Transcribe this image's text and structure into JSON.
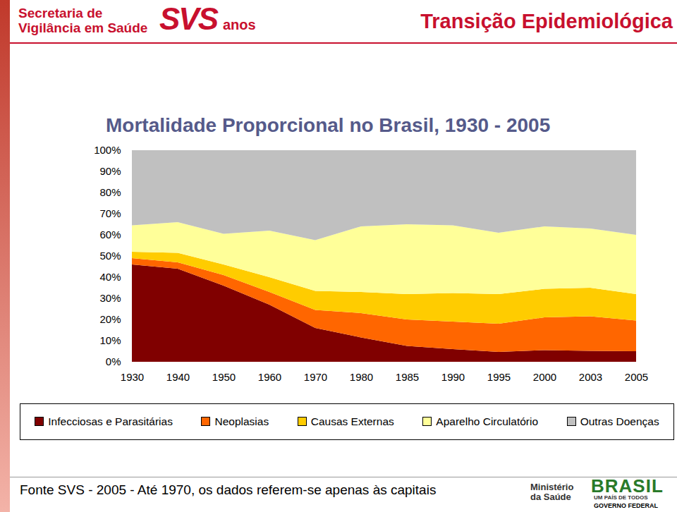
{
  "header": {
    "organization": "Secretaria de Vigilância em Saúde",
    "logo": "SVS",
    "logo_suffix": "anos",
    "title": "Transição Epidemiológica"
  },
  "chart_data": {
    "type": "area",
    "stacked": true,
    "legend": "bottom",
    "title": "Mortalidade Proporcional no Brasil, 1930 - 2005",
    "categories": [
      "1930",
      "1940",
      "1950",
      "1960",
      "1970",
      "1980",
      "1985",
      "1990",
      "1995",
      "2000",
      "2003",
      "2005"
    ],
    "ylim": [
      0,
      100
    ],
    "yticks": [
      {
        "value": 0,
        "label": "0%"
      },
      {
        "value": 10,
        "label": "10%"
      },
      {
        "value": 20,
        "label": "20%"
      },
      {
        "value": 30,
        "label": "30%"
      },
      {
        "value": 40,
        "label": "40%"
      },
      {
        "value": 50,
        "label": "50%"
      },
      {
        "value": 60,
        "label": "60%"
      },
      {
        "value": 70,
        "label": "70%"
      },
      {
        "value": 80,
        "label": "80%"
      },
      {
        "value": 90,
        "label": "90%"
      },
      {
        "value": 100,
        "label": "100%"
      }
    ],
    "series": [
      {
        "name": "Infecciosas e Parasitárias",
        "color": "#800000",
        "values": [
          46,
          44,
          36,
          27,
          16,
          11.5,
          7.5,
          6,
          4.7,
          5.5,
          5.2,
          5
        ]
      },
      {
        "name": "Neoplasias",
        "color": "#ff6600",
        "values": [
          3,
          3,
          5,
          6,
          8.5,
          11.5,
          12.5,
          13,
          13.3,
          15.5,
          16.3,
          14.5
        ]
      },
      {
        "name": "Causas Externas",
        "color": "#ffcc00",
        "values": [
          3,
          4.5,
          5,
          7,
          9,
          10,
          12,
          13.5,
          14,
          13.5,
          13.5,
          12.5
        ]
      },
      {
        "name": "Aparelho Circulatório",
        "color": "#ffff99",
        "values": [
          12.5,
          14.5,
          14.5,
          22,
          24,
          31,
          33,
          32,
          29,
          29.5,
          28,
          28
        ]
      },
      {
        "name": "Outras Doenças",
        "color": "#c0c0c0",
        "values": [
          35.5,
          34,
          39.5,
          38,
          42.5,
          36,
          35,
          35.5,
          39,
          36,
          37,
          40
        ]
      }
    ]
  },
  "footer": {
    "source": "Fonte SVS - 2005 - Até 1970, os dados referem-se apenas às capitais",
    "ministry": "Ministério da Saúde",
    "brand": "BRASIL",
    "slogan": "UM PAÍS DE TODOS",
    "government": "GOVERNO FEDERAL"
  }
}
